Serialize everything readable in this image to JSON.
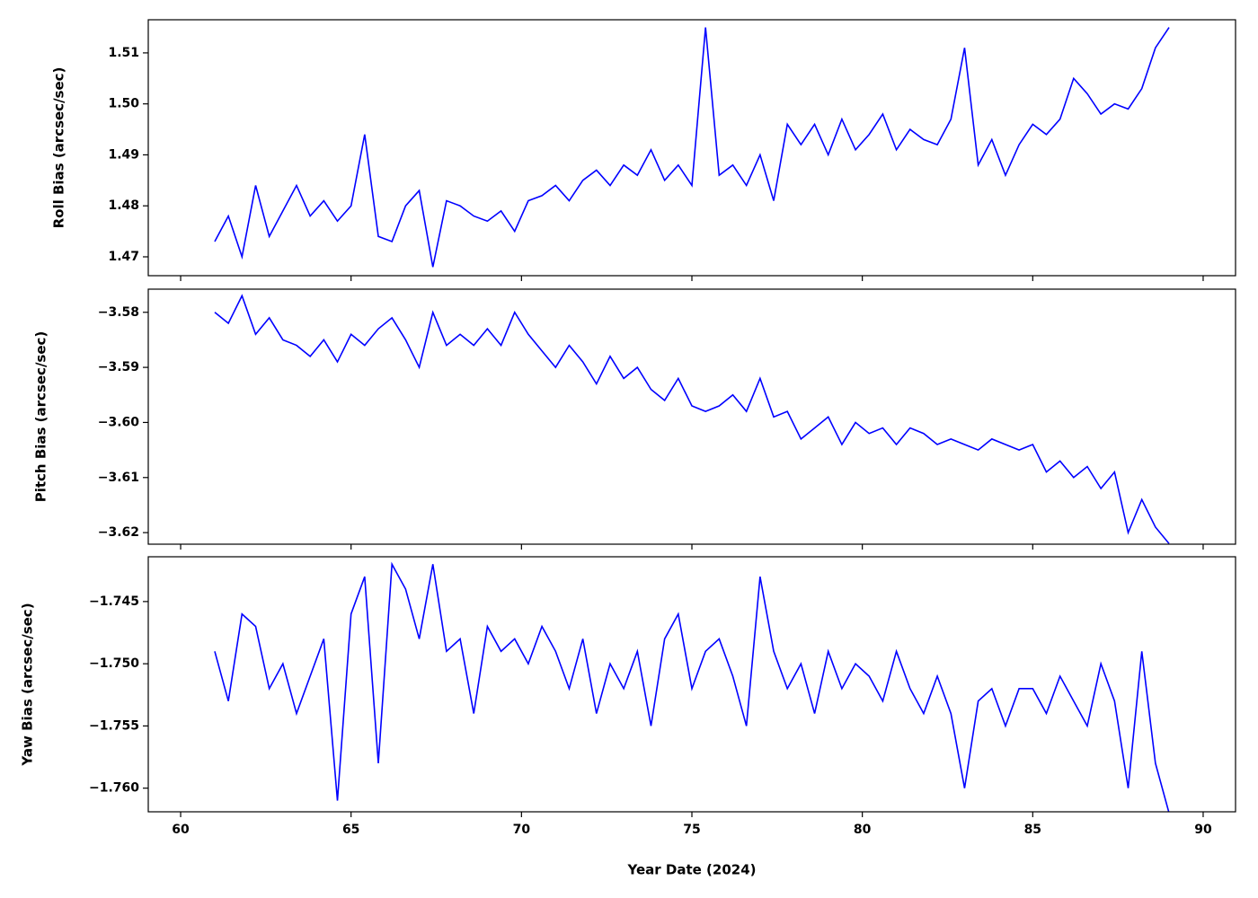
{
  "chart_data": [
    {
      "type": "line",
      "y_label": "Roll Bias (arcsec/sec)",
      "color": "#0000ff",
      "xlim": [
        59.05,
        90.95
      ],
      "xticks": [
        60,
        65,
        70,
        75,
        80,
        85,
        90
      ],
      "ylim": [
        1.4663,
        1.5165
      ],
      "yticks": [
        1.47,
        1.48,
        1.49,
        {
          "value": 1.5,
          "label": "1.50"
        },
        1.51
      ],
      "x": [
        61.0,
        61.4,
        61.8,
        62.2,
        62.6,
        63.0,
        63.4,
        63.8,
        64.2,
        64.6,
        65.0,
        65.4,
        65.8,
        66.2,
        66.6,
        67.0,
        67.4,
        67.8,
        68.2,
        68.6,
        69.0,
        69.4,
        69.8,
        70.2,
        70.6,
        71.0,
        71.4,
        71.8,
        72.2,
        72.6,
        73.0,
        73.4,
        73.8,
        74.2,
        74.6,
        75.0,
        75.4,
        75.8,
        76.2,
        76.6,
        77.0,
        77.4,
        77.8,
        78.2,
        78.6,
        79.0,
        79.4,
        79.8,
        80.2,
        80.6,
        81.0,
        81.4,
        81.8,
        82.2,
        82.6,
        83.0,
        83.4,
        83.8,
        84.2,
        84.6,
        85.0,
        85.4,
        85.8,
        86.2,
        86.6,
        87.0,
        87.4,
        87.8,
        88.2,
        88.6,
        89.0
      ],
      "values": [
        1.473,
        1.478,
        1.47,
        1.484,
        1.474,
        1.479,
        1.484,
        1.478,
        1.481,
        1.477,
        1.48,
        1.494,
        1.474,
        1.473,
        1.48,
        1.483,
        1.468,
        1.481,
        1.48,
        1.478,
        1.477,
        1.479,
        1.475,
        1.481,
        1.482,
        1.484,
        1.481,
        1.485,
        1.487,
        1.484,
        1.488,
        1.486,
        1.491,
        1.485,
        1.488,
        1.484,
        1.515,
        1.486,
        1.488,
        1.484,
        1.49,
        1.481,
        1.496,
        1.492,
        1.496,
        1.49,
        1.497,
        1.491,
        1.494,
        1.498,
        1.491,
        1.495,
        1.493,
        1.492,
        1.497,
        1.511,
        1.488,
        1.493,
        1.486,
        1.492,
        1.496,
        1.494,
        1.497,
        1.505,
        1.502,
        1.498,
        1.5,
        1.499,
        1.503,
        1.511,
        1.515
      ]
    },
    {
      "type": "line",
      "y_label": "Pitch Bias (arcsec/sec)",
      "color": "#0000ff",
      "xlim": [
        59.05,
        90.95
      ],
      "xticks": [
        60,
        65,
        70,
        75,
        80,
        85,
        90
      ],
      "ylim": [
        -3.6221,
        -3.5758
      ],
      "yticks": [
        {
          "value": -3.62,
          "label": "−3.62"
        },
        {
          "value": -3.61,
          "label": "−3.61"
        },
        {
          "value": -3.6,
          "label": "−3.60"
        },
        {
          "value": -3.59,
          "label": "−3.59"
        },
        {
          "value": -3.58,
          "label": "−3.58"
        }
      ],
      "x": [
        61.0,
        61.4,
        61.8,
        62.2,
        62.6,
        63.0,
        63.4,
        63.8,
        64.2,
        64.6,
        65.0,
        65.4,
        65.8,
        66.2,
        66.6,
        67.0,
        67.4,
        67.8,
        68.2,
        68.6,
        69.0,
        69.4,
        69.8,
        70.2,
        70.6,
        71.0,
        71.4,
        71.8,
        72.2,
        72.6,
        73.0,
        73.4,
        73.8,
        74.2,
        74.6,
        75.0,
        75.4,
        75.8,
        76.2,
        76.6,
        77.0,
        77.4,
        77.8,
        78.2,
        78.6,
        79.0,
        79.4,
        79.8,
        80.2,
        80.6,
        81.0,
        81.4,
        81.8,
        82.2,
        82.6,
        83.0,
        83.4,
        83.8,
        84.2,
        84.6,
        85.0,
        85.4,
        85.8,
        86.2,
        86.6,
        87.0,
        87.4,
        87.8,
        88.2,
        88.6,
        89.0
      ],
      "values": [
        -3.58,
        -3.582,
        -3.577,
        -3.584,
        -3.581,
        -3.585,
        -3.586,
        -3.588,
        -3.585,
        -3.589,
        -3.584,
        -3.586,
        -3.583,
        -3.581,
        -3.585,
        -3.59,
        -3.58,
        -3.586,
        -3.584,
        -3.586,
        -3.583,
        -3.586,
        -3.58,
        -3.584,
        -3.587,
        -3.59,
        -3.586,
        -3.589,
        -3.593,
        -3.588,
        -3.592,
        -3.59,
        -3.594,
        -3.596,
        -3.592,
        -3.597,
        -3.598,
        -3.597,
        -3.595,
        -3.598,
        -3.592,
        -3.599,
        -3.598,
        -3.603,
        -3.601,
        -3.599,
        -3.604,
        -3.6,
        -3.602,
        -3.601,
        -3.604,
        -3.601,
        -3.602,
        -3.604,
        -3.603,
        -3.604,
        -3.605,
        -3.603,
        -3.604,
        -3.605,
        -3.604,
        -3.609,
        -3.607,
        -3.61,
        -3.608,
        -3.612,
        -3.609,
        -3.62,
        -3.614,
        -3.619,
        -3.622
      ]
    },
    {
      "type": "line",
      "y_label": "Yaw Bias (arcsec/sec)",
      "x_label": "Year Date (2024)",
      "color": "#0000ff",
      "xlim": [
        59.05,
        90.95
      ],
      "xticks": [
        60,
        65,
        70,
        75,
        80,
        85,
        90
      ],
      "ylim": [
        -1.7619,
        -1.7414
      ],
      "yticks": [
        {
          "value": -1.76,
          "label": "−1.760"
        },
        {
          "value": -1.755,
          "label": "−1.755"
        },
        {
          "value": -1.75,
          "label": "−1.750"
        },
        {
          "value": -1.745,
          "label": "−1.745"
        }
      ],
      "x": [
        61.0,
        61.4,
        61.8,
        62.2,
        62.6,
        63.0,
        63.4,
        63.8,
        64.2,
        64.6,
        65.0,
        65.4,
        65.8,
        66.2,
        66.6,
        67.0,
        67.4,
        67.8,
        68.2,
        68.6,
        69.0,
        69.4,
        69.8,
        70.2,
        70.6,
        71.0,
        71.4,
        71.8,
        72.2,
        72.6,
        73.0,
        73.4,
        73.8,
        74.2,
        74.6,
        75.0,
        75.4,
        75.8,
        76.2,
        76.6,
        77.0,
        77.4,
        77.8,
        78.2,
        78.6,
        79.0,
        79.4,
        79.8,
        80.2,
        80.6,
        81.0,
        81.4,
        81.8,
        82.2,
        82.6,
        83.0,
        83.4,
        83.8,
        84.2,
        84.6,
        85.0,
        85.4,
        85.8,
        86.2,
        86.6,
        87.0,
        87.4,
        87.8,
        88.2,
        88.6,
        89.0
      ],
      "values": [
        -1.749,
        -1.753,
        -1.746,
        -1.747,
        -1.752,
        -1.75,
        -1.754,
        -1.751,
        -1.748,
        -1.761,
        -1.746,
        -1.743,
        -1.758,
        -1.742,
        -1.744,
        -1.748,
        -1.742,
        -1.749,
        -1.748,
        -1.754,
        -1.747,
        -1.749,
        -1.748,
        -1.75,
        -1.747,
        -1.749,
        -1.752,
        -1.748,
        -1.754,
        -1.75,
        -1.752,
        -1.749,
        -1.755,
        -1.748,
        -1.746,
        -1.752,
        -1.749,
        -1.748,
        -1.751,
        -1.755,
        -1.743,
        -1.749,
        -1.752,
        -1.75,
        -1.754,
        -1.749,
        -1.752,
        -1.75,
        -1.751,
        -1.753,
        -1.749,
        -1.752,
        -1.754,
        -1.751,
        -1.754,
        -1.76,
        -1.753,
        -1.752,
        -1.755,
        -1.752,
        -1.752,
        -1.754,
        -1.751,
        -1.753,
        -1.755,
        -1.75,
        -1.753,
        -1.76,
        -1.749,
        -1.758,
        -1.762
      ]
    }
  ]
}
